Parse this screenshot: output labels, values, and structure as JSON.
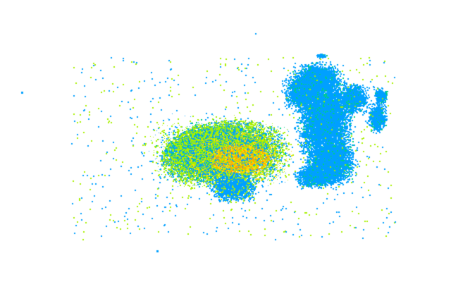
{
  "image": {
    "kind": "radar-reflectivity-echoes",
    "background": "#ffffff",
    "colors": {
      "weak": "#00a0ff",
      "light": "#00d080",
      "moderate": "#a8f000",
      "strong": "#ffe000",
      "heavy": "#ffa800"
    }
  }
}
